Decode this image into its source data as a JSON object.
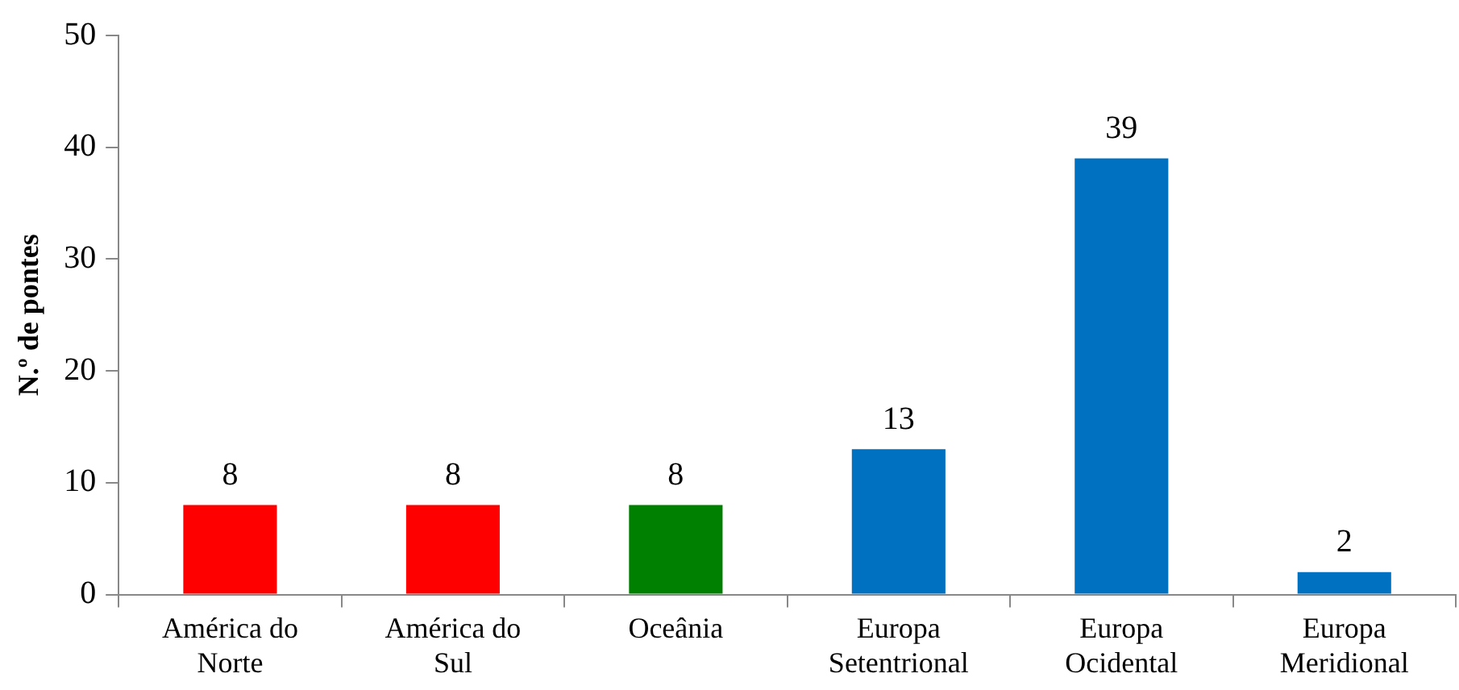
{
  "chart_data": {
    "type": "bar",
    "ylabel": "N.º de pontes",
    "categories": [
      "América do Norte",
      "América do Sul",
      "Oceânia",
      "Europa Setentrional",
      "Europa Ocidental",
      "Europa Meridional"
    ],
    "values": [
      8,
      8,
      8,
      13,
      39,
      2
    ],
    "colors": [
      "#ff0000",
      "#ff0000",
      "#008000",
      "#0070c0",
      "#0070c0",
      "#0070c0"
    ],
    "ylim": [
      0,
      50
    ],
    "yticks": [
      0,
      10,
      20,
      30,
      40,
      50
    ],
    "grid": false,
    "legend": false,
    "data_labels": true
  }
}
